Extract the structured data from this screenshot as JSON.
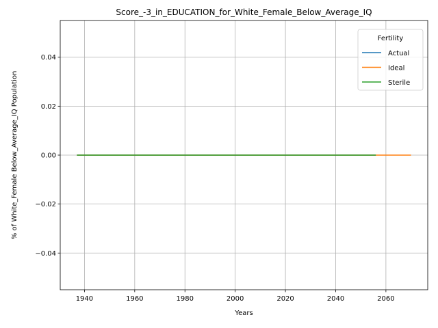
{
  "chart_data": {
    "type": "line",
    "title": "Score_-3_in_EDUCATION_for_White_Female_Below_Average_IQ",
    "xlabel": "Years",
    "ylabel": "% of White_Female Below_Average_IQ Population",
    "xlim": [
      1930.35,
      2076.65
    ],
    "ylim": [
      -0.055,
      0.055
    ],
    "x_ticks": [
      1940,
      1960,
      1980,
      2000,
      2020,
      2040,
      2060
    ],
    "y_ticks": [
      -0.04,
      -0.02,
      0.0,
      0.02,
      0.04
    ],
    "y_tick_labels": [
      "−0.04",
      "−0.02",
      "0.00",
      "0.02",
      "0.04"
    ],
    "grid": true,
    "legend": {
      "title": "Fertility",
      "position": "top-right"
    },
    "series": [
      {
        "name": "Actual",
        "color": "#1f77b4",
        "x": [
          1937,
          2056
        ],
        "y": [
          0.0,
          0.0
        ]
      },
      {
        "name": "Ideal",
        "color": "#ff7f0e",
        "x": [
          1937,
          2070
        ],
        "y": [
          0.0,
          0.0
        ]
      },
      {
        "name": "Sterile",
        "color": "#2ca02c",
        "x": [
          1937,
          2056
        ],
        "y": [
          0.0,
          0.0
        ]
      }
    ]
  }
}
